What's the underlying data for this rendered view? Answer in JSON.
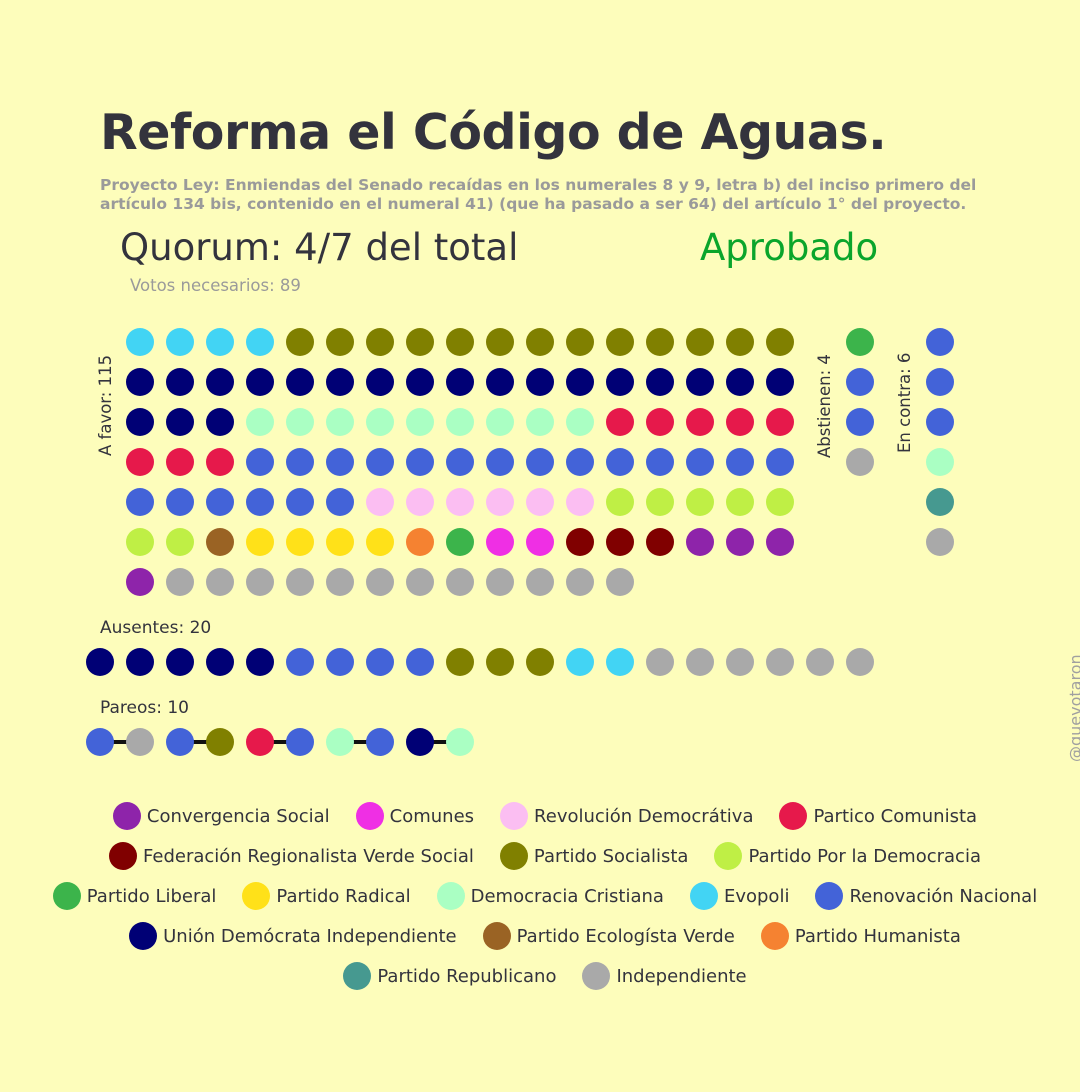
{
  "title": "Reforma el Código de Aguas.",
  "subtitle": "Proyecto Ley: Enmiendas del Senado recaídas en los numerales 8 y 9, letra b) del inciso primero del artículo 134 bis, contenido en el numeral 41) (que ha pasado a ser 64) del artículo 1° del proyecto.",
  "quorum": "Quorum: 4/7 del total",
  "result": "Aprobado",
  "result_color": "#0aa52b",
  "votes_needed": "Votos necesarios: 89",
  "credit": "@quevotaron",
  "chart_data": {
    "type": "dot-matrix",
    "parties": [
      {
        "key": "CS",
        "name": "Convergencia Social",
        "color": "#8e24aa"
      },
      {
        "key": "COM",
        "name": "Comunes",
        "color": "#ef2fe4"
      },
      {
        "key": "RD",
        "name": "Revolución Democrátiva",
        "color": "#fbbef2"
      },
      {
        "key": "PC",
        "name": "Partico Comunista",
        "color": "#e6194b"
      },
      {
        "key": "FRVS",
        "name": "Federación Regionalista Verde Social",
        "color": "#800000"
      },
      {
        "key": "PS",
        "name": "Partido Socialista",
        "color": "#808000"
      },
      {
        "key": "PPD",
        "name": "Partido Por la Democracia",
        "color": "#bfef45"
      },
      {
        "key": "PL",
        "name": "Partido Liberal",
        "color": "#3cb44b"
      },
      {
        "key": "PR",
        "name": "Partido Radical",
        "color": "#ffe119"
      },
      {
        "key": "DC",
        "name": "Democracia Cristiana",
        "color": "#aaffc3"
      },
      {
        "key": "EVO",
        "name": "Evopoli",
        "color": "#42d4f4"
      },
      {
        "key": "RN",
        "name": "Renovación Nacional",
        "color": "#4363d8"
      },
      {
        "key": "UDI",
        "name": "Unión Demócrata Independiente",
        "color": "#000075"
      },
      {
        "key": "PEV",
        "name": "Partido Ecologísta Verde",
        "color": "#9a6324"
      },
      {
        "key": "PH",
        "name": "Partido Humanista",
        "color": "#f58231"
      },
      {
        "key": "REP",
        "name": "Partido Republicano",
        "color": "#469990"
      },
      {
        "key": "IND",
        "name": "Independiente",
        "color": "#a9a9a9"
      }
    ],
    "groups": {
      "a_favor": {
        "label": "A favor: 115",
        "count": 115,
        "members": [
          [
            "EVO",
            4
          ],
          [
            "PS",
            13
          ],
          [
            "UDI",
            20
          ],
          [
            "DC",
            9
          ],
          [
            "PC",
            8
          ],
          [
            "RN",
            20
          ],
          [
            "RD",
            6
          ],
          [
            "PPD",
            7
          ],
          [
            "PEV",
            1
          ],
          [
            "PR",
            4
          ],
          [
            "PH",
            1
          ],
          [
            "PL",
            1
          ],
          [
            "COM",
            2
          ],
          [
            "FRVS",
            3
          ],
          [
            "CS",
            4
          ],
          [
            "IND",
            12
          ]
        ]
      },
      "abstienen": {
        "label": "Abstienen: 4",
        "count": 4,
        "members": [
          [
            "PL",
            1
          ],
          [
            "RN",
            2
          ],
          [
            "IND",
            1
          ]
        ]
      },
      "en_contra": {
        "label": "En contra: 6",
        "count": 6,
        "members": [
          [
            "RN",
            3
          ],
          [
            "DC",
            1
          ],
          [
            "REP",
            1
          ],
          [
            "IND",
            1
          ]
        ]
      },
      "ausentes": {
        "label": "Ausentes: 20",
        "count": 20,
        "members": [
          [
            "UDI",
            5
          ],
          [
            "RN",
            4
          ],
          [
            "PS",
            3
          ],
          [
            "EVO",
            2
          ],
          [
            "IND",
            6
          ]
        ]
      },
      "pareos": {
        "label": "Pareos: 10",
        "count": 10,
        "pairs": [
          [
            "RN",
            "IND"
          ],
          [
            "RN",
            "PS"
          ],
          [
            "PC",
            "RN"
          ],
          [
            "DC",
            "RN"
          ],
          [
            "UDI",
            "DC"
          ]
        ]
      }
    }
  }
}
